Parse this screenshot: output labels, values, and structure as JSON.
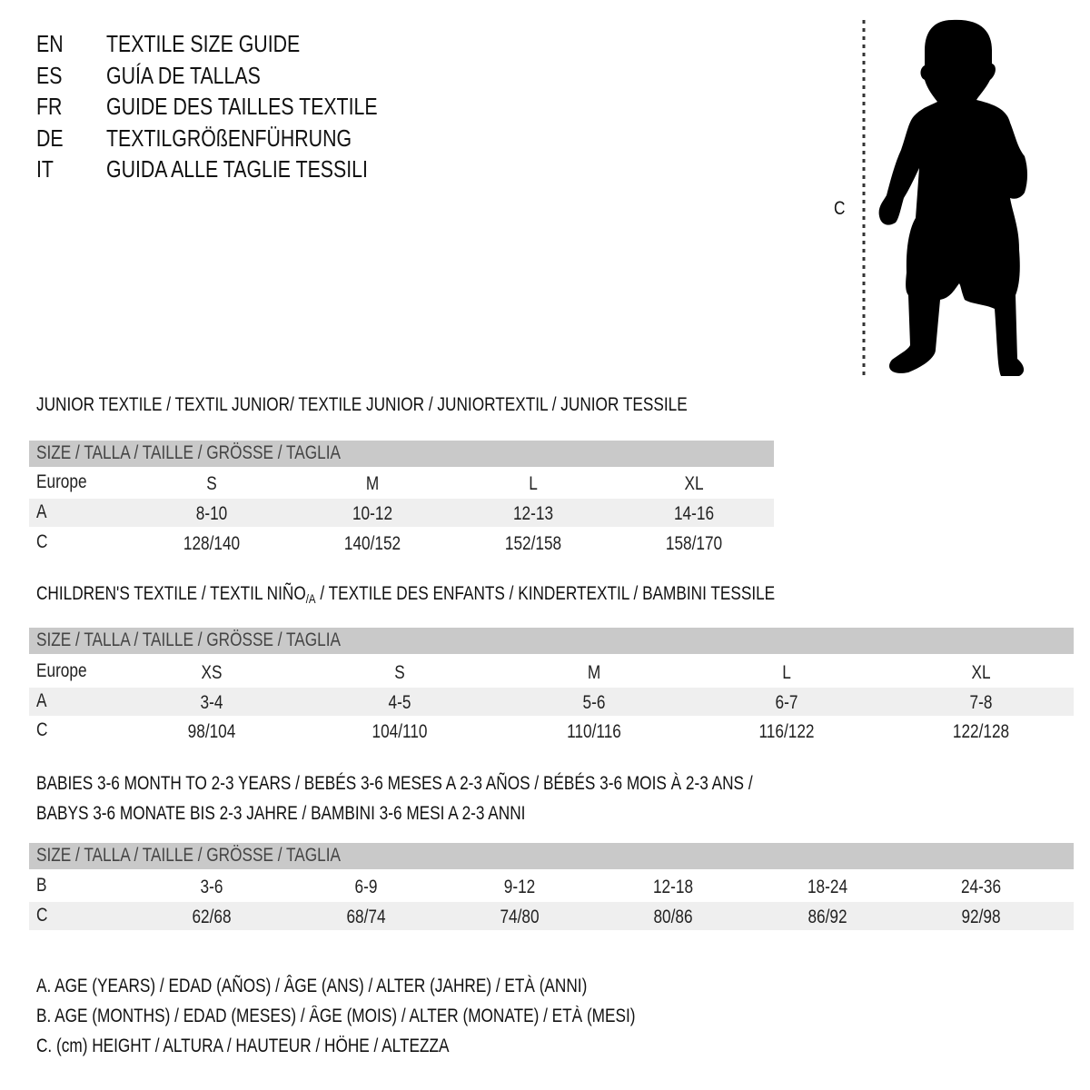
{
  "languages": [
    {
      "code": "EN",
      "title": "TEXTILE SIZE GUIDE"
    },
    {
      "code": "ES",
      "title": "GUÍA DE TALLAS"
    },
    {
      "code": "FR",
      "title": "GUIDE DES TAILLES TEXTILE"
    },
    {
      "code": "DE",
      "title": "TEXTILGRÖßENFÜHRUNG"
    },
    {
      "code": "IT",
      "title": "GUIDA ALLE TAGLIE TESSILI"
    }
  ],
  "figure": {
    "measure_label": "C",
    "icon": "child-silhouette"
  },
  "size_header": "SIZE / TALLA / TAILLE / GRÖSSE / TAGLIA",
  "junior": {
    "heading": "JUNIOR TEXTILE / TEXTIL JUNIOR/ TEXTILE JUNIOR / JUNIORTEXTIL / JUNIOR TESSILE",
    "rows": [
      {
        "label": "Europe",
        "values": [
          "S",
          "M",
          "L",
          "XL"
        ]
      },
      {
        "label": "A",
        "values": [
          "8-10",
          "10-12",
          "12-13",
          "14-16"
        ]
      },
      {
        "label": "C",
        "values": [
          "128/140",
          "140/152",
          "152/158",
          "158/170"
        ]
      }
    ]
  },
  "children": {
    "heading_pre": "CHILDREN'S TEXTILE / TEXTIL NIÑO",
    "heading_sub": "/A",
    "heading_post": " / TEXTILE DES ENFANTS / KINDERTEXTIL / BAMBINI TESSILE",
    "rows": [
      {
        "label": "Europe",
        "values": [
          "XS",
          "S",
          "M",
          "L",
          "XL"
        ]
      },
      {
        "label": "A",
        "values": [
          "3-4",
          "4-5",
          "5-6",
          "6-7",
          "7-8"
        ]
      },
      {
        "label": "C",
        "values": [
          "98/104",
          "104/110",
          "110/116",
          "116/122",
          "122/128"
        ]
      }
    ]
  },
  "babies": {
    "heading_line1": "BABIES 3-6 MONTH TO 2-3 YEARS / BEBÉS 3-6 MESES A 2-3 AÑOS / BÉBÉS 3-6 MOIS À 2-3 ANS /",
    "heading_line2": "BABYS 3-6 MONATE BIS 2-3 JAHRE / BAMBINI 3-6 MESI A 2-3 ANNI",
    "rows": [
      {
        "label": "B",
        "values": [
          "3-6",
          "6-9",
          "9-12",
          "12-18",
          "18-24",
          "24-36"
        ]
      },
      {
        "label": "C",
        "values": [
          "62/68",
          "68/74",
          "74/80",
          "80/86",
          "86/92",
          "92/98"
        ]
      }
    ]
  },
  "legend": [
    "A. AGE (YEARS) / EDAD (AÑOS) / ÂGE (ANS) / ALTER (JAHRE) / ETÀ (ANNI)",
    "B. AGE (MONTHS) / EDAD (MESES) / ÂGE (MOIS) / ALTER (MONATE) / ETÀ (MESI)",
    "C. (cm) HEIGHT / ALTURA / HAUTEUR / HÖHE / ALTEZZA"
  ],
  "colors": {
    "band": "#c9c9c9",
    "shade": "#efefef",
    "text": "#111111"
  }
}
